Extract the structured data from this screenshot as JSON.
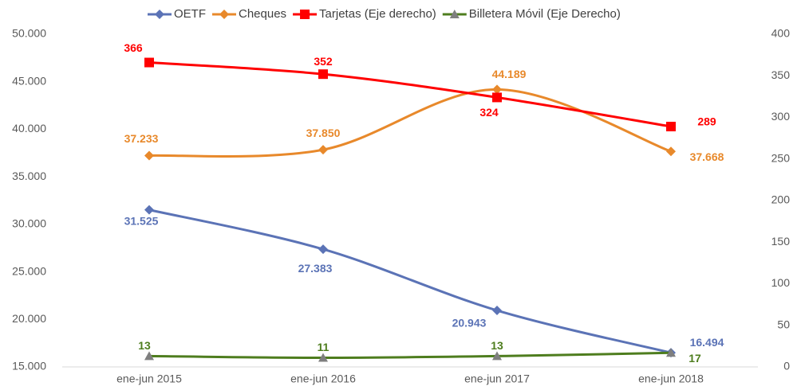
{
  "chart_data": {
    "type": "line",
    "categories": [
      "ene-jun 2015",
      "ene-jun 2016",
      "ene-jun 2017",
      "ene-jun 2018"
    ],
    "series": [
      {
        "name": "OETF",
        "color": "#5b73b6",
        "marker": "diamond",
        "values": [
          31525,
          27383,
          20943,
          16494
        ],
        "value_labels": [
          "31.525",
          "27.383",
          "20.943",
          "16.494"
        ]
      },
      {
        "name": "Cheques",
        "color": "#e8892b",
        "marker": "diamond",
        "values": [
          37233,
          37850,
          44189,
          37668
        ],
        "value_labels": [
          "37.233",
          "37.850",
          "44.189",
          "37.668"
        ]
      },
      {
        "name": "Tarjetas (Eje derecho)",
        "color": "#ff0000",
        "marker": "square",
        "axis": "y2",
        "values": [
          366,
          352,
          324,
          289
        ]
      },
      {
        "name": "Billetera Móvil (Eje Derecho)",
        "color": "#4e7d1e",
        "marker": "triangle",
        "marker_color": "#7f7f7f",
        "axis": "y2",
        "values": [
          13,
          11,
          13,
          17
        ]
      }
    ],
    "ylim": [
      15000,
      50000
    ],
    "yticks": [
      {
        "value": 15000,
        "label": "15.000"
      },
      {
        "value": 20000,
        "label": "20.000"
      },
      {
        "value": 25000,
        "label": "25.000"
      },
      {
        "value": 30000,
        "label": "30.000"
      },
      {
        "value": 35000,
        "label": "35.000"
      },
      {
        "value": 40000,
        "label": "40.000"
      },
      {
        "value": 45000,
        "label": "45.000"
      },
      {
        "value": 50000,
        "label": "50.000"
      }
    ],
    "y2lim": [
      0,
      400
    ],
    "y2ticks": [
      0,
      50,
      100,
      150,
      200,
      250,
      300,
      350,
      400
    ],
    "legend": "top",
    "grid": false,
    "smooth": true
  }
}
